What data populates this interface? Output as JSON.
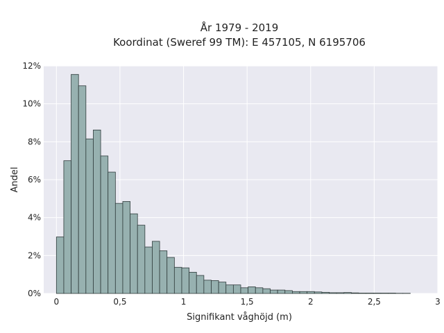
{
  "chart_data": {
    "type": "bar",
    "title": "År 1979 - 2019",
    "subtitle": "Koordinat (Sweref 99 TM): E 457105, N 6195706",
    "xlabel": "Signifikant våghöjd (m)",
    "ylabel": "Andel",
    "xlim": [
      -0.1,
      3.0
    ],
    "ylim": [
      0,
      12
    ],
    "grid": true,
    "bar_color": "#97b1b0",
    "bar_edge_color": "#2f3b3b",
    "plot_bg": "#e9e9f1",
    "bin_width": 0.058,
    "x_ticks": [
      0,
      0.5,
      1,
      1.5,
      2,
      2.5,
      3
    ],
    "x_tick_labels": [
      "0",
      "0,5",
      "1",
      "1,5",
      "2",
      "2,5",
      "3"
    ],
    "y_ticks": [
      0,
      2,
      4,
      6,
      8,
      10,
      12
    ],
    "y_tick_labels": [
      "0%",
      "2%",
      "4%",
      "6%",
      "8%",
      "10%",
      "12%"
    ],
    "bins": [
      0.0,
      0.058,
      0.116,
      0.174,
      0.232,
      0.29,
      0.348,
      0.406,
      0.464,
      0.522,
      0.58,
      0.638,
      0.696,
      0.754,
      0.812,
      0.87,
      0.928,
      0.986,
      1.044,
      1.102,
      1.16,
      1.218,
      1.276,
      1.334,
      1.392,
      1.45,
      1.508,
      1.566,
      1.624,
      1.682,
      1.74,
      1.798,
      1.856,
      1.914,
      1.972,
      2.03,
      2.088,
      2.146,
      2.204,
      2.262,
      2.32,
      2.378,
      2.436,
      2.494,
      2.552,
      2.61,
      2.668,
      2.726
    ],
    "values": [
      2.98,
      7.0,
      11.55,
      10.95,
      8.15,
      8.62,
      7.25,
      6.4,
      4.75,
      4.85,
      4.2,
      3.6,
      2.45,
      2.75,
      2.25,
      1.9,
      1.38,
      1.35,
      1.12,
      0.95,
      0.7,
      0.68,
      0.6,
      0.45,
      0.45,
      0.3,
      0.35,
      0.3,
      0.25,
      0.18,
      0.18,
      0.15,
      0.1,
      0.1,
      0.1,
      0.08,
      0.06,
      0.04,
      0.04,
      0.05,
      0.03,
      0.02,
      0.02,
      0.02,
      0.02,
      0.02,
      0.01,
      0.01
    ]
  }
}
